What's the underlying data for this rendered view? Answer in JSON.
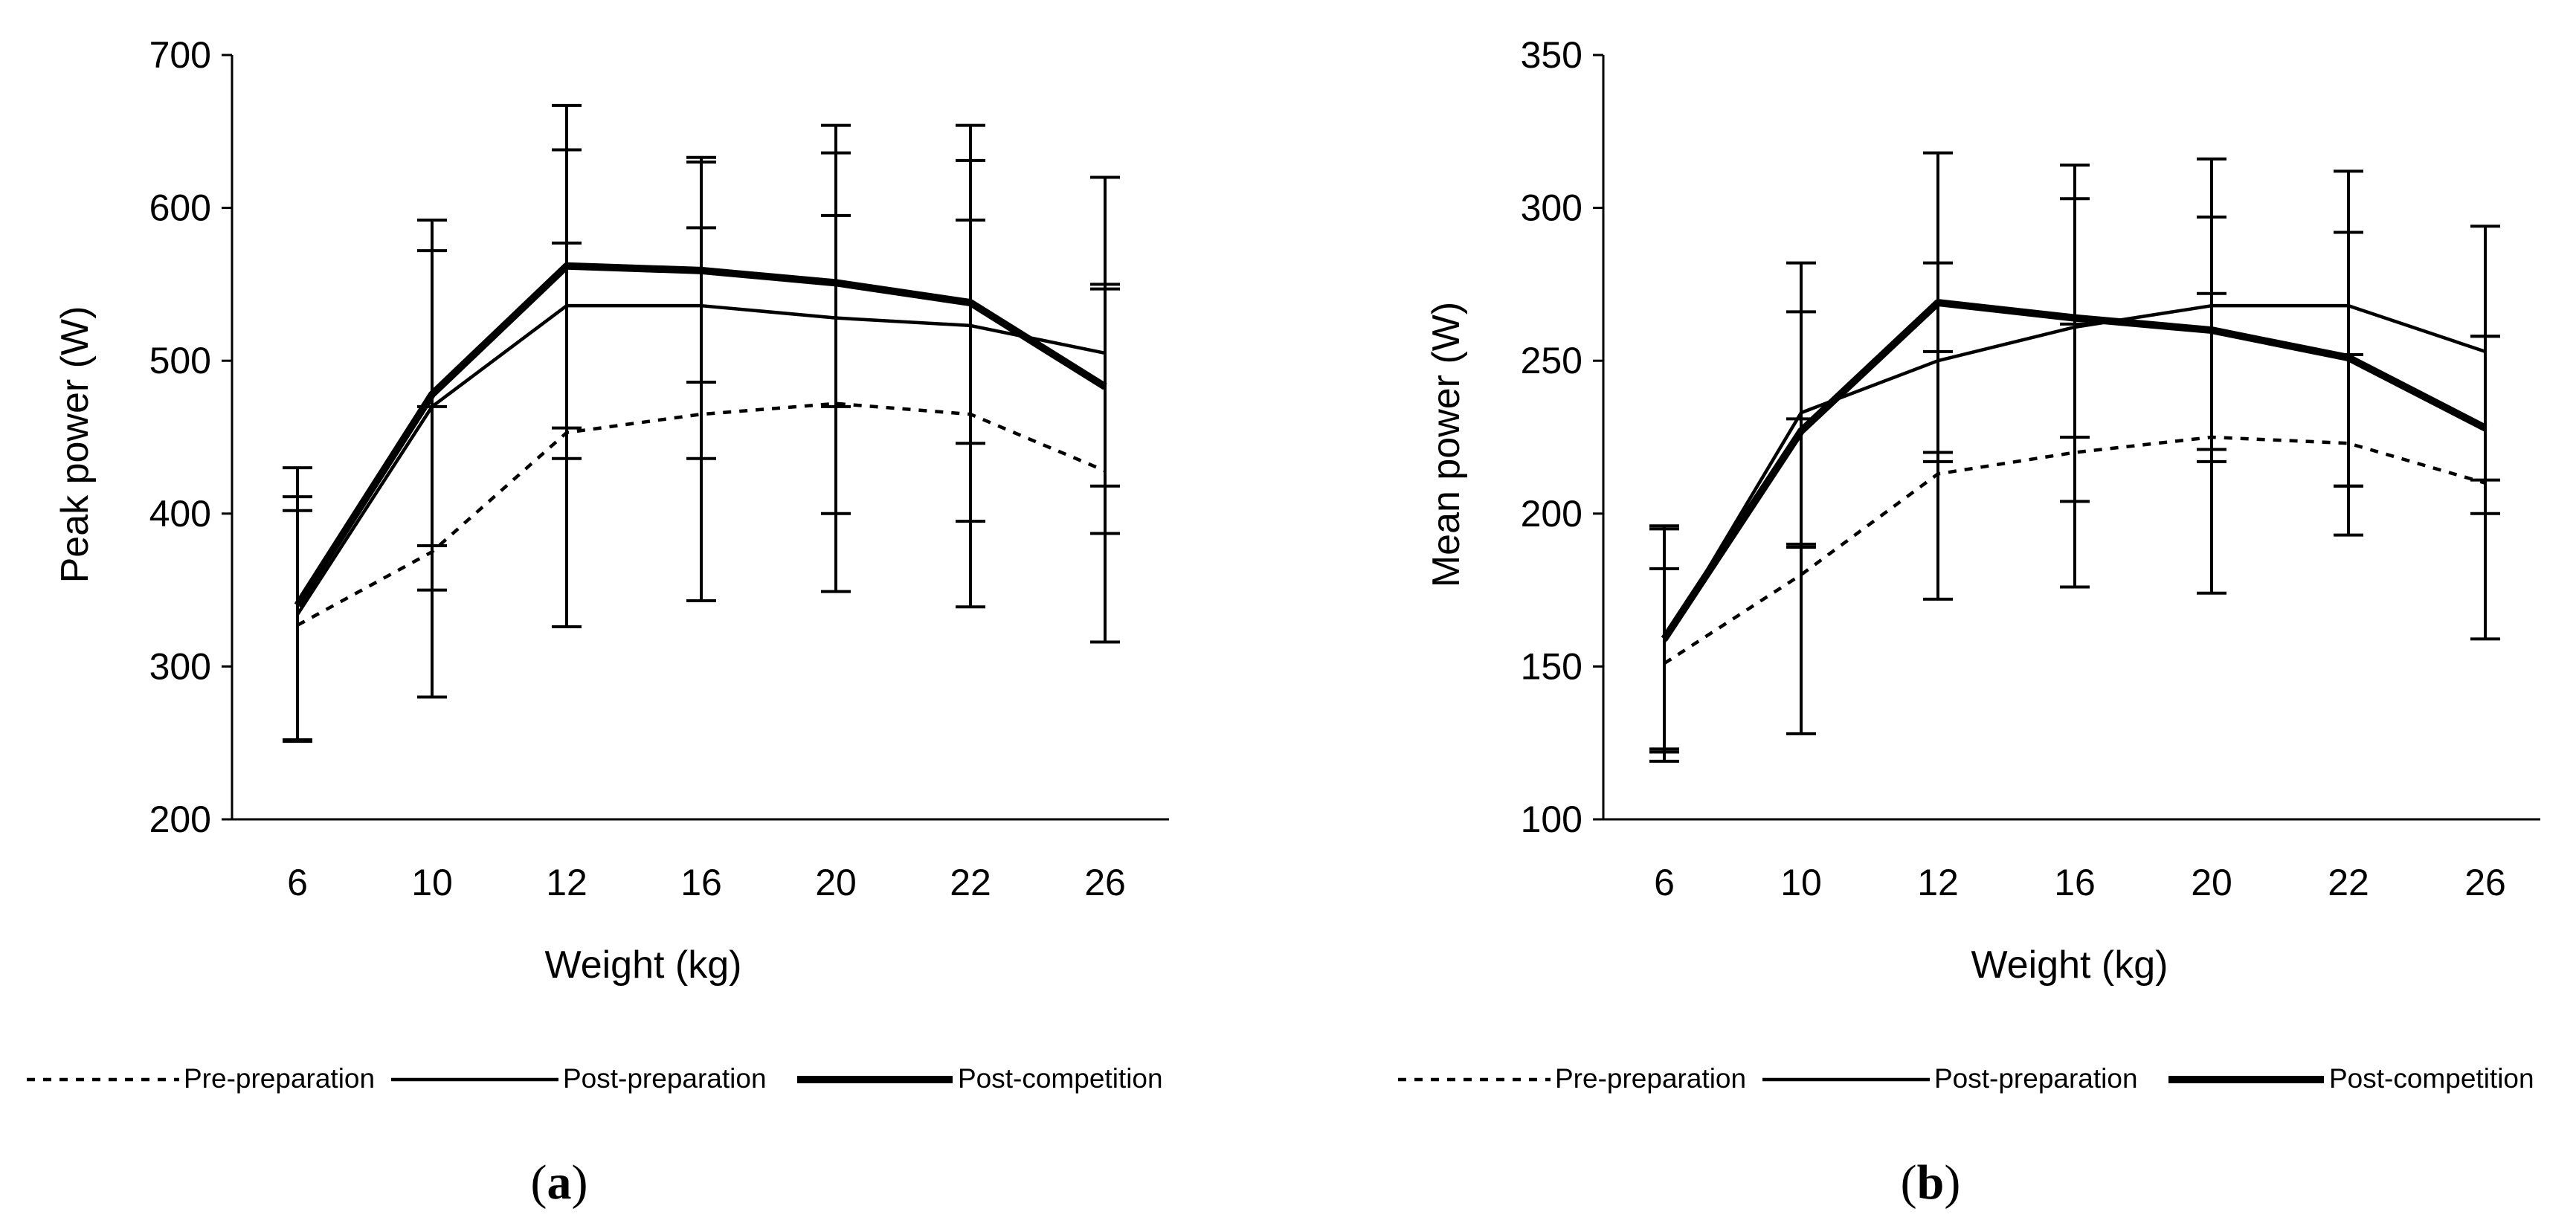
{
  "panels": [
    {
      "label": "(a)",
      "label_letter": "a",
      "chart_data": {
        "type": "line",
        "title": "",
        "xlabel": "Weight (kg)",
        "ylabel": "Peak power (W)",
        "categories": [
          "6",
          "10",
          "12",
          "16",
          "20",
          "22",
          "26"
        ],
        "ylim": [
          200,
          700
        ],
        "yticks": [
          200,
          300,
          400,
          500,
          600,
          700
        ],
        "grid": false,
        "legend_position": "bottom",
        "error_bars": true,
        "series": [
          {
            "name": "Pre-preparation",
            "style": "dotted",
            "values": [
              327,
              375,
              453,
              465,
              472,
              465,
              428
            ],
            "error_low": [
              252,
              280,
              326,
              343,
              349,
              339,
              316
            ],
            "error_high": [
              402,
              470,
              577,
              587,
              595,
              592,
              547
            ]
          },
          {
            "name": "Post-preparation",
            "style": "thin",
            "values": [
              334,
              470,
              536,
              536,
              528,
              523,
              505
            ],
            "error_low": [
              252,
              350,
              436,
              436,
              400,
              395,
              387
            ],
            "error_high": [
              411,
              572,
              638,
              630,
              636,
              631,
              620
            ]
          },
          {
            "name": "Post-competition",
            "style": "thick",
            "values": [
              340,
              478,
              562,
              559,
              551,
              538,
              483
            ],
            "error_low": [
              251,
              379,
              456,
              486,
              470,
              446,
              418
            ],
            "error_high": [
              430,
              592,
              667,
              633,
              654,
              654,
              550
            ]
          }
        ]
      }
    },
    {
      "label": "(b)",
      "label_letter": "b",
      "chart_data": {
        "type": "line",
        "title": "",
        "xlabel": "Weight (kg)",
        "ylabel": "Mean power (W)",
        "categories": [
          "6",
          "10",
          "12",
          "16",
          "20",
          "22",
          "26"
        ],
        "ylim": [
          100,
          350
        ],
        "yticks": [
          100,
          150,
          200,
          250,
          300,
          350
        ],
        "grid": false,
        "legend_position": "bottom",
        "error_bars": true,
        "series": [
          {
            "name": "Pre-preparation",
            "style": "dotted",
            "values": [
              151,
              180,
              213,
              220,
              225,
              223,
              210
            ],
            "error_low": [
              119,
              128,
              172,
              176,
              174,
              193,
              159
            ],
            "error_high": [
              182,
              231,
              253,
              262,
              272,
              252,
              258
            ]
          },
          {
            "name": "Post-preparation",
            "style": "thin",
            "values": [
              158,
              233,
              250,
              261,
              268,
              268,
              253
            ],
            "error_low": [
              123,
              190,
              217,
              204,
              217,
              209,
              200
            ],
            "error_high": [
              195,
              266,
              282,
              303,
              297,
              292,
              294
            ]
          },
          {
            "name": "Post-competition",
            "style": "thick",
            "values": [
              159,
              227,
              269,
              264,
              260,
              251,
              228
            ],
            "error_low": [
              122,
              189,
              220,
              225,
              221,
              209,
              211
            ],
            "error_high": [
              196,
              282,
              318,
              314,
              316,
              312,
              258
            ]
          }
        ]
      }
    }
  ]
}
